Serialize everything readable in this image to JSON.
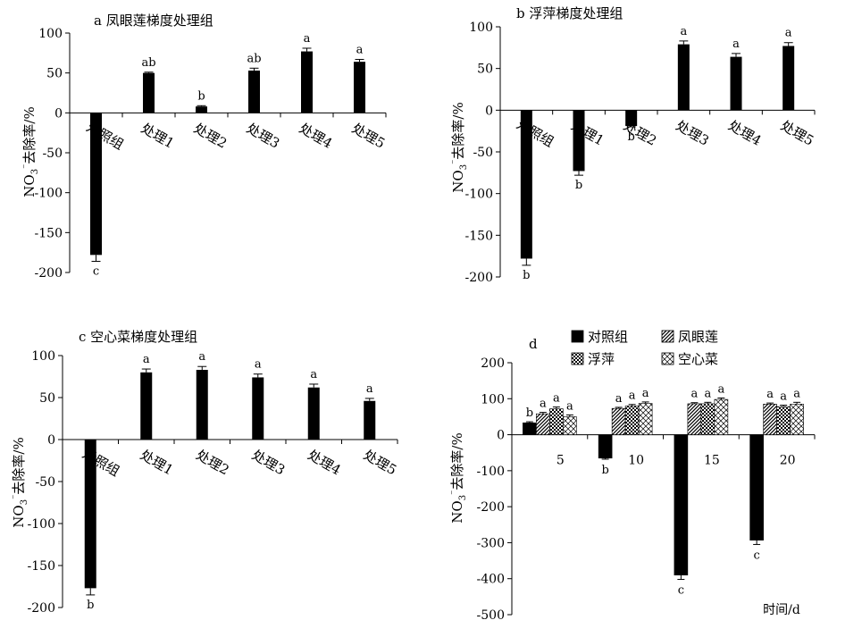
{
  "chart_data": [
    {
      "type": "bar",
      "title": "a 凤眼莲梯度处理组",
      "ylabel": "NO3⁻去除率/%",
      "categories": [
        "对照组",
        "处理1",
        "处理2",
        "处理3",
        "处理4",
        "处理5"
      ],
      "values": [
        -178,
        50,
        8,
        53,
        77,
        64
      ],
      "errors": [
        8,
        1,
        1,
        3,
        4,
        3
      ],
      "significance": [
        "c",
        "ab",
        "b",
        "ab",
        "a",
        "a"
      ],
      "ylim": [
        -200,
        100
      ],
      "yticks": [
        "100",
        "50",
        "0",
        "-50",
        "-100",
        "-150",
        "-200"
      ],
      "bar_color": "#000000"
    },
    {
      "type": "bar",
      "title": "b 浮萍梯度处理组",
      "ylabel": "NO3⁻去除率/%",
      "categories": [
        "对照组",
        "处理1",
        "处理2",
        "处理3",
        "处理4",
        "处理5"
      ],
      "values": [
        -178,
        -73,
        -19,
        79,
        64,
        77
      ],
      "errors": [
        8,
        5,
        1,
        4,
        4,
        4
      ],
      "significance": [
        "b",
        "b",
        "b",
        "a",
        "a",
        "a"
      ],
      "ylim": [
        -200,
        100
      ],
      "yticks": [
        "100",
        "50",
        "0",
        "-50",
        "-100",
        "-150",
        "-200"
      ],
      "bar_color": "#000000"
    },
    {
      "type": "bar",
      "title": "c 空心菜梯度处理组",
      "ylabel": "NO3⁻去除率/%",
      "categories": [
        "对照组",
        "处理1",
        "处理2",
        "处理3",
        "处理4",
        "处理5"
      ],
      "values": [
        -177,
        80,
        83,
        74,
        62,
        46
      ],
      "errors": [
        8,
        4,
        4,
        4,
        4,
        3
      ],
      "significance": [
        "b",
        "a",
        "a",
        "a",
        "a",
        "a"
      ],
      "ylim": [
        -200,
        100
      ],
      "yticks": [
        "100",
        "50",
        "0",
        "-50",
        "-100",
        "-150",
        "-200"
      ],
      "bar_color": "#000000"
    },
    {
      "type": "bar",
      "title": "d",
      "ylabel": "NO3⁻去除率/%",
      "xlabel": "时间/d",
      "categories": [
        "5",
        "10",
        "15",
        "20"
      ],
      "series": [
        {
          "name": "对照组",
          "values": [
            33,
            -65,
            -390,
            -293
          ],
          "errors": [
            3,
            3,
            12,
            12
          ],
          "significance": [
            "b",
            "b",
            "c",
            "c"
          ],
          "pattern": "solid"
        },
        {
          "name": "凤眼莲",
          "values": [
            58,
            73,
            86,
            85
          ],
          "errors": [
            4,
            3,
            3,
            3
          ],
          "significance": [
            "a",
            "a",
            "a",
            "a"
          ],
          "pattern": "diagonal"
        },
        {
          "name": "浮萍",
          "values": [
            72,
            80,
            86,
            78
          ],
          "errors": [
            5,
            4,
            4,
            4
          ],
          "significance": [
            "a",
            "a",
            "a",
            "a"
          ],
          "pattern": "checker"
        },
        {
          "name": "空心菜",
          "values": [
            50,
            87,
            98,
            85
          ],
          "errors": [
            5,
            4,
            4,
            5
          ],
          "significance": [
            "a",
            "a",
            "a",
            "a"
          ],
          "pattern": "crosshatch"
        }
      ],
      "ylim": [
        -500,
        200
      ],
      "yticks": [
        "200",
        "100",
        "0",
        "-100",
        "-200",
        "-300",
        "-400",
        "-500"
      ],
      "legend": "top"
    }
  ]
}
